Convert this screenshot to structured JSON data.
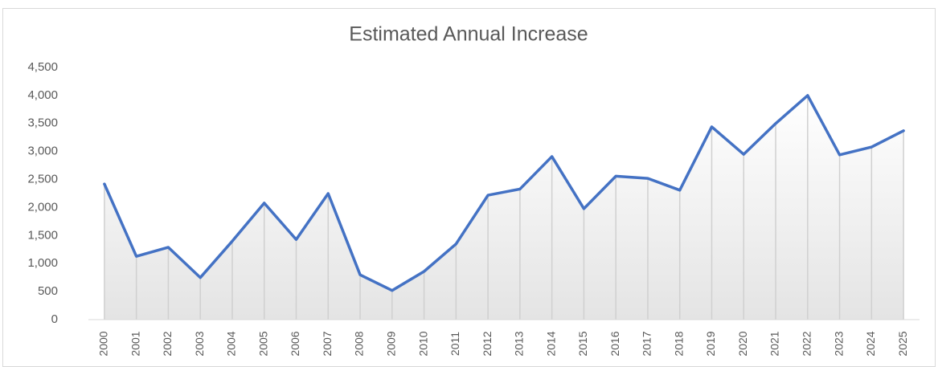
{
  "chart_data": {
    "type": "line",
    "title": "Estimated Annual Increase",
    "categories": [
      "2000",
      "2001",
      "2002",
      "2003",
      "2004",
      "2005",
      "2006",
      "2007",
      "2008",
      "2009",
      "2010",
      "2011",
      "2012",
      "2013",
      "2014",
      "2015",
      "2016",
      "2017",
      "2018",
      "2019",
      "2020",
      "2021",
      "2022",
      "2023",
      "2024",
      "2025"
    ],
    "series": [
      {
        "name": "Estimated Annual Increase",
        "color": "#4472c4",
        "values": [
          2420,
          1130,
          1290,
          750,
          1400,
          2080,
          1430,
          2250,
          800,
          520,
          860,
          1350,
          2220,
          2330,
          2910,
          1980,
          2560,
          2520,
          2310,
          3440,
          2950,
          3500,
          4000,
          2940,
          3080,
          3370
        ]
      }
    ],
    "ylim": [
      0,
      4500
    ],
    "yticks": [
      0,
      500,
      {
        "value": 1000,
        "label": "1,000"
      },
      {
        "value": 1500,
        "label": "1,500"
      },
      {
        "value": 2000,
        "label": "2,000"
      },
      {
        "value": 2500,
        "label": "2,500"
      },
      {
        "value": 3000,
        "label": "3,000"
      },
      {
        "value": 3500,
        "label": "3,500"
      },
      {
        "value": 4000,
        "label": "4,000"
      },
      {
        "value": 4500,
        "label": "4,500"
      }
    ],
    "drop_lines": true,
    "area_fill": true,
    "grid": false
  }
}
